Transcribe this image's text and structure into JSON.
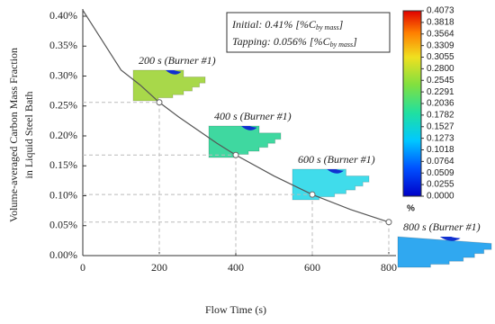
{
  "chart_data": {
    "type": "line",
    "ylabel": [
      "Volume-averaged Carbon Mass Fraction",
      "in Liquid Steel Bath"
    ],
    "xlabel": "Flow Time (s)",
    "x": [
      0,
      25,
      50,
      80,
      100,
      150,
      200,
      250,
      300,
      350,
      400,
      500,
      600,
      700,
      800
    ],
    "values": [
      0.41,
      0.385,
      0.36,
      0.33,
      0.31,
      0.285,
      0.256,
      0.232,
      0.21,
      0.188,
      0.168,
      0.133,
      0.102,
      0.077,
      0.056
    ],
    "color": "#555555",
    "xlim": [
      0,
      800
    ],
    "xticks": [
      0,
      200,
      400,
      600,
      800
    ],
    "ylim": [
      0,
      0.4
    ],
    "yticks": [
      {
        "value": 0,
        "label": "0.00%"
      },
      {
        "value": 0.05,
        "label": "0.05%"
      },
      {
        "value": 0.1,
        "label": "0.10%"
      },
      {
        "value": 0.15,
        "label": "0.15%"
      },
      {
        "value": 0.2,
        "label": "0.20%"
      },
      {
        "value": 0.25,
        "label": "0.25%"
      },
      {
        "value": 0.3,
        "label": "0.30%"
      },
      {
        "value": 0.35,
        "label": "0.35%"
      },
      {
        "value": 0.4,
        "label": "0.40%"
      }
    ],
    "snapshots": [
      {
        "x": 200,
        "value": 0.256,
        "label": "200 s (Burner #1)"
      },
      {
        "x": 400,
        "value": 0.168,
        "label": "400 s (Burner #1)"
      },
      {
        "x": 600,
        "value": 0.102,
        "label": "600 s (Burner #1)"
      },
      {
        "x": 800,
        "value": 0.056,
        "label": "800 s (Burner #1)"
      }
    ],
    "annotation": [
      [
        "Initial: 0.41% [%C",
        "by mass",
        "]"
      ],
      [
        "Tapping: 0.056% [%C",
        "by mass",
        "]"
      ]
    ],
    "colorbar": {
      "unit": "%",
      "ticks": [
        {
          "value": 0.4073,
          "label": "0.4073"
        },
        {
          "value": 0.3818,
          "label": "0.3818"
        },
        {
          "value": 0.3564,
          "label": "0.3564"
        },
        {
          "value": 0.3309,
          "label": "0.3309"
        },
        {
          "value": 0.3055,
          "label": "0.3055"
        },
        {
          "value": 0.28,
          "label": "0.2800"
        },
        {
          "value": 0.2545,
          "label": "0.2545"
        },
        {
          "value": 0.2291,
          "label": "0.2291"
        },
        {
          "value": 0.2036,
          "label": "0.2036"
        },
        {
          "value": 0.1782,
          "label": "0.1782"
        },
        {
          "value": 0.1527,
          "label": "0.1527"
        },
        {
          "value": 0.1273,
          "label": "0.1273"
        },
        {
          "value": 0.1018,
          "label": "0.1018"
        },
        {
          "value": 0.0764,
          "label": "0.0764"
        },
        {
          "value": 0.0509,
          "label": "0.0509"
        },
        {
          "value": 0.0255,
          "label": "0.0255"
        },
        {
          "value": 0,
          "label": "0.0000"
        }
      ]
    }
  }
}
